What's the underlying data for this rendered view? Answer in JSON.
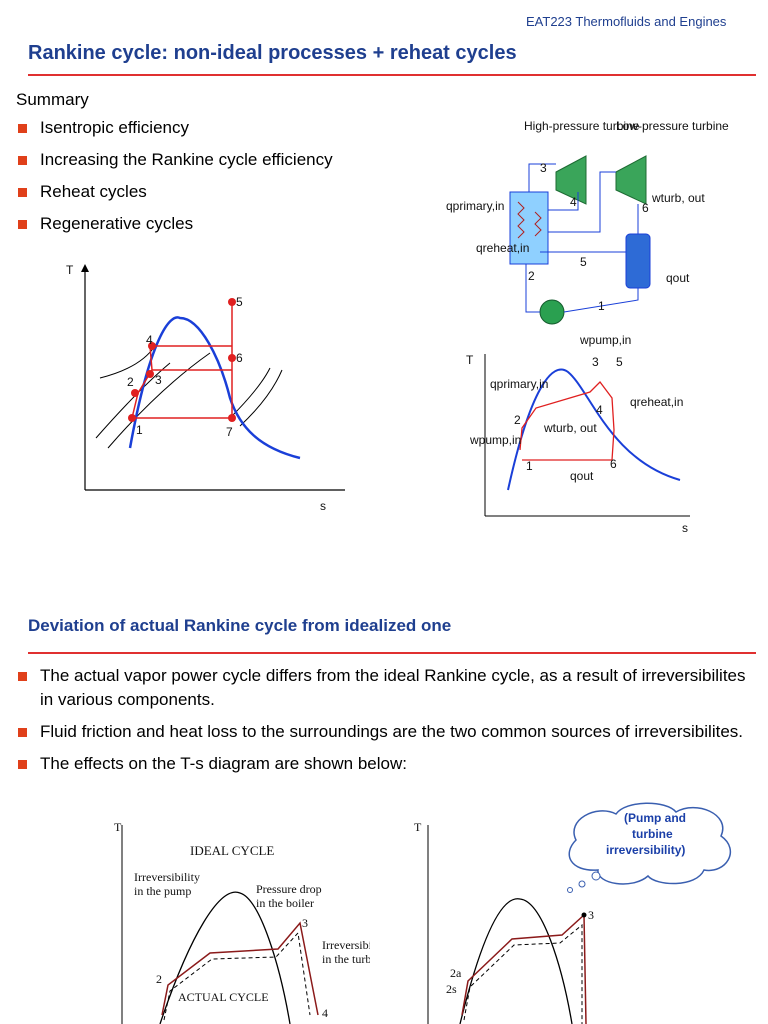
{
  "header": {
    "course": "EAT223 Thermofluids and Engines",
    "title": "Rankine cycle: non-ideal processes + reheat cycles"
  },
  "summary": {
    "heading": "Summary",
    "items": [
      "Isentropic efficiency",
      "Increasing the Rankine cycle efficiency",
      "Reheat cycles",
      "Regenerative cycles"
    ]
  },
  "ts_left": {
    "t_axis": "T",
    "s_axis": "s",
    "points": [
      "1",
      "2",
      "3",
      "4",
      "5",
      "6",
      "7"
    ]
  },
  "plant": {
    "hp_turbine": "High-pressure turbine",
    "lp_turbine": "Low-pressure turbine",
    "w_turb_out": "wturb, out",
    "q_primary": "qprimary,in",
    "q_reheat": "qreheat,in",
    "q_out": "qout",
    "w_pump": "wpump,in",
    "states": [
      "1",
      "2",
      "3",
      "4",
      "5",
      "6"
    ]
  },
  "ts_right": {
    "t_axis": "T",
    "s_axis": "s",
    "q_primary": "qprimary,in",
    "q_reheat": "qreheat,in",
    "w_turb": "wturb, out",
    "w_pump": "wpump,in",
    "q_out": "qout",
    "points": [
      "1",
      "2",
      "3",
      "4",
      "5",
      "6"
    ]
  },
  "section": {
    "heading": "Deviation of actual Rankine cycle from idealized one",
    "bullets": [
      "The actual vapor power cycle differs from the ideal Rankine cycle, as a result of irreversibilites in various components.",
      "Fluid friction and heat loss to the surroundings are the two common sources of irreversibilites.",
      "The effects on the T-s diagram are shown below:"
    ]
  },
  "cloud": {
    "line1": "(Pump and",
    "line2": "turbine",
    "line3": "irreversibility)"
  },
  "bottom_left": {
    "t_axis": "T",
    "ideal": "IDEAL CYCLE",
    "irr_pump_1": "Irreversibility",
    "irr_pump_2": "in the pump",
    "pdrop_1": "Pressure drop",
    "pdrop_2": "in the boiler",
    "irr_turb_1": "Irreversibility",
    "irr_turb_2": "in the turbine",
    "actual": "ACTUAL CYCLE",
    "p2": "2",
    "p3": "3",
    "p4": "4"
  },
  "bottom_right": {
    "t_axis": "T",
    "p3": "3",
    "p2a": "2a",
    "p2s": "2s"
  }
}
